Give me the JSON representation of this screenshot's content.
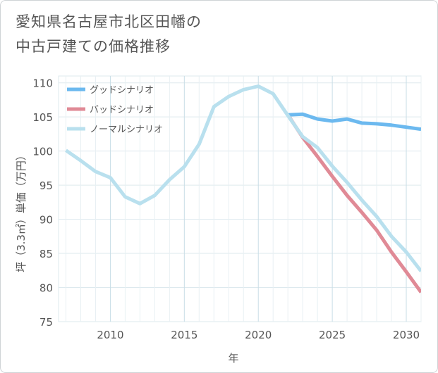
{
  "chart_data": {
    "type": "line",
    "title": "愛知県名古屋市北区田幡の\n中古戸建ての価格推移",
    "xlabel": "年",
    "ylabel": "坪（3.3㎡）単価（万円）",
    "xlim": [
      2006.5,
      2031
    ],
    "ylim": [
      75,
      111
    ],
    "x_ticks": [
      2010,
      2015,
      2020,
      2025,
      2030
    ],
    "y_ticks": [
      75,
      80,
      85,
      90,
      95,
      100,
      105,
      110
    ],
    "legend_position": "top-left",
    "series": [
      {
        "name": "グッドシナリオ",
        "color": "#6cb9ef",
        "x": [
          2022,
          2023,
          2024,
          2025,
          2026,
          2027,
          2028,
          2029,
          2030,
          2031
        ],
        "values": [
          105.3,
          105.4,
          104.7,
          104.4,
          104.7,
          104.1,
          104.0,
          103.8,
          103.5,
          103.2
        ]
      },
      {
        "name": "バッドシナリオ",
        "color": "#e08a96",
        "x": [
          2022,
          2023,
          2024,
          2025,
          2026,
          2027,
          2028,
          2029,
          2030,
          2031
        ],
        "values": [
          105.3,
          102.0,
          99.2,
          96.3,
          93.5,
          91.0,
          88.4,
          85.2,
          82.3,
          79.3
        ]
      },
      {
        "name": "ノーマルシナリオ",
        "color": "#b9e0ee",
        "x": [
          2007,
          2008,
          2009,
          2010,
          2011,
          2012,
          2013,
          2014,
          2015,
          2016,
          2017,
          2018,
          2019,
          2020,
          2021,
          2022,
          2023,
          2024,
          2025,
          2026,
          2027,
          2028,
          2029,
          2030,
          2031
        ],
        "values": [
          100.1,
          98.6,
          97.0,
          96.1,
          93.3,
          92.3,
          93.5,
          95.8,
          97.7,
          101.0,
          106.5,
          108.0,
          109.0,
          109.5,
          108.4,
          105.2,
          102.1,
          100.5,
          97.8,
          95.4,
          92.8,
          90.4,
          87.5,
          85.2,
          82.4
        ]
      }
    ]
  }
}
